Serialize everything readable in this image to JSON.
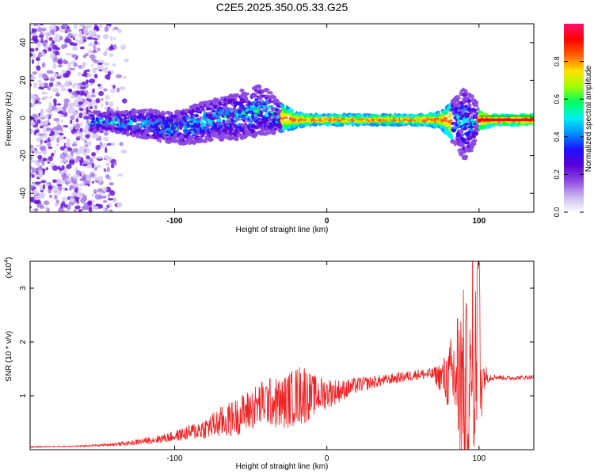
{
  "title": "C2E5.2025.350.05.33.G25",
  "chart_data": [
    {
      "type": "heatmap",
      "xlabel": "Height of straight line (km)",
      "ylabel": "Frequency (Hz)",
      "xlim": [
        -195,
        136
      ],
      "ylim": [
        -50,
        50
      ],
      "x_ticks": [
        -100,
        0,
        100
      ],
      "y_ticks": [
        -40,
        -20,
        0,
        20,
        40
      ],
      "colorbar": {
        "label": "Normalized spectral amplitude",
        "range": [
          0,
          1
        ],
        "ticks": [
          "0.0",
          "0.2",
          "0.4",
          "0.6",
          "0.8"
        ],
        "colors": [
          "#ffffff",
          "#c9b6ee",
          "#8b48e0",
          "#5a00d8",
          "#1c10ff",
          "#0090ff",
          "#00f0f0",
          "#00ff60",
          "#a0ff00",
          "#ffe000",
          "#ff6000",
          "#ff0000",
          "#ff1070"
        ]
      },
      "ridge": {
        "x": [
          -155,
          -140,
          -120,
          -105,
          -95,
          -85,
          -75,
          -65,
          -55,
          -45,
          -38,
          -30,
          -20,
          -10,
          0,
          20,
          40,
          60,
          75,
          85,
          90,
          95,
          100,
          110,
          136
        ],
        "frequency_hz": [
          -2,
          -2,
          -3,
          -5,
          -5,
          -3,
          -1,
          0,
          2,
          4,
          3,
          0,
          -1,
          -1,
          -1,
          -1,
          -1,
          -1,
          -1,
          -2,
          -3,
          -2,
          -1,
          -1,
          -1
        ],
        "spread_hz": [
          4,
          4,
          6,
          6,
          7,
          8,
          8,
          9,
          10,
          10,
          9,
          6,
          3,
          2,
          2,
          2,
          2,
          2,
          3,
          10,
          15,
          12,
          4,
          2,
          2
        ]
      },
      "note_region_noise": [
        -195,
        -130
      ]
    },
    {
      "type": "line",
      "xlabel": "Height of straight line (km)",
      "ylabel": "SNR (10 * v/v)",
      "y_multiplier": "(x10",
      "y_multiplier_exp": "4",
      "xlim": [
        -195,
        136
      ],
      "ylim": [
        0,
        3.5
      ],
      "x_ticks": [
        -100,
        0,
        100
      ],
      "y_ticks": [
        1,
        2,
        3
      ],
      "color": "#ee2222",
      "x": [
        -195,
        -170,
        -150,
        -130,
        -110,
        -100,
        -90,
        -80,
        -70,
        -60,
        -50,
        -40,
        -30,
        -20,
        -15,
        -10,
        0,
        10,
        20,
        30,
        40,
        50,
        60,
        70,
        75,
        80,
        85,
        88,
        90,
        92,
        95,
        98,
        100,
        103,
        106,
        110,
        120,
        136
      ],
      "y": [
        0.05,
        0.06,
        0.08,
        0.12,
        0.2,
        0.25,
        0.32,
        0.4,
        0.5,
        0.6,
        0.75,
        0.9,
        0.85,
        1.0,
        1.05,
        1.0,
        1.05,
        1.1,
        1.2,
        1.25,
        1.3,
        1.35,
        1.4,
        1.4,
        1.35,
        1.3,
        1.4,
        1.3,
        1.2,
        1.1,
        1.0,
        1.5,
        1.6,
        1.4,
        1.35,
        1.35,
        1.33,
        1.35
      ],
      "amp": [
        0.01,
        0.01,
        0.02,
        0.04,
        0.08,
        0.1,
        0.15,
        0.2,
        0.3,
        0.35,
        0.4,
        0.45,
        0.5,
        0.55,
        0.6,
        0.4,
        0.3,
        0.2,
        0.15,
        0.12,
        0.1,
        0.1,
        0.1,
        0.12,
        0.3,
        0.6,
        1.2,
        1.8,
        1.8,
        1.6,
        1.4,
        1.6,
        1.8,
        0.3,
        0.1,
        0.05,
        0.04,
        0.04
      ]
    }
  ]
}
